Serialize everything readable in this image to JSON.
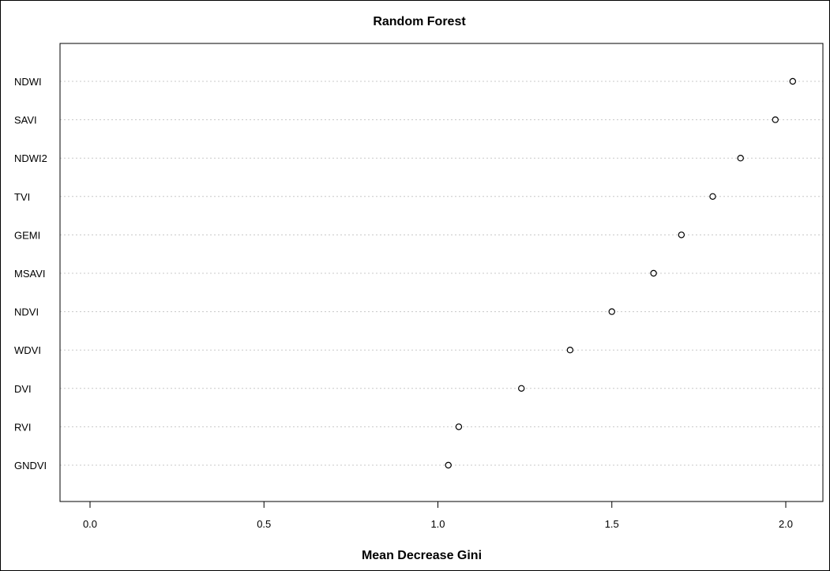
{
  "chart_data": {
    "type": "scatter",
    "subtype": "dotchart",
    "title": "Random Forest",
    "xlabel": "Mean Decrease Gini",
    "ylabel": "",
    "xlim": [
      -0.08,
      2.05
    ],
    "xticks": [
      "0.0",
      "0.5",
      "1.0",
      "1.5",
      "2.0"
    ],
    "xtick_values": [
      0.0,
      0.5,
      1.0,
      1.5,
      2.0
    ],
    "grid": "horizontal dotted guide lines",
    "categories": [
      "NDWI",
      "SAVI",
      "NDWI2",
      "TVI",
      "GEMI",
      "MSAVI",
      "NDVI",
      "WDVI",
      "DVI",
      "RVI",
      "GNDVI"
    ],
    "values": [
      2.02,
      1.97,
      1.87,
      1.79,
      1.7,
      1.62,
      1.5,
      1.38,
      1.24,
      1.06,
      1.03
    ]
  }
}
